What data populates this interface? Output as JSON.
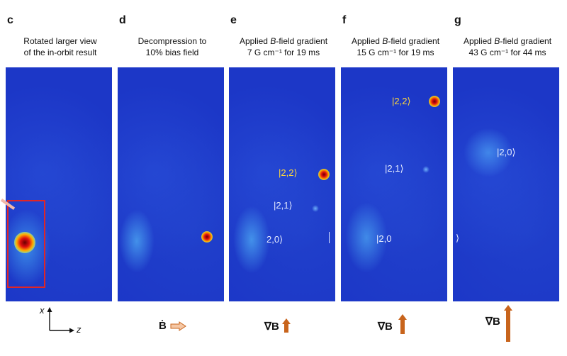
{
  "panels": [
    {
      "letter": "c",
      "caption_line1": "Rotated larger view",
      "caption_line2": "of the in-orbit result"
    },
    {
      "letter": "d",
      "caption_line1": "Decompression to",
      "caption_line2": "10% bias field",
      "bottom_symbol": "Ḃ"
    },
    {
      "letter": "e",
      "caption_pre": "Applied ",
      "caption_ital": "B",
      "caption_post": "-field gradient",
      "caption_line2": "7 G cm⁻¹ for 19 ms",
      "labels": [
        "|2,2⟩",
        "|2,1⟩",
        "2,0⟩"
      ],
      "bottom_symbol": "∇B"
    },
    {
      "letter": "f",
      "caption_pre": "Applied ",
      "caption_ital": "B",
      "caption_post": "-field gradient",
      "caption_line2": "15 G cm⁻¹ for 19 ms",
      "labels": [
        "|2,2⟩",
        "|2,1⟩",
        "|2,0"
      ],
      "bottom_symbol": "∇B"
    },
    {
      "letter": "g",
      "caption_pre": "Applied ",
      "caption_ital": "B",
      "caption_post": "-field gradient",
      "caption_line2": "43 G cm⁻¹ for 44 ms",
      "labels": [
        "|2,0⟩",
        "⟩"
      ],
      "bottom_symbol": "∇B"
    }
  ],
  "axes": {
    "x_label": "x",
    "z_label": "z"
  },
  "colors": {
    "background": "#1c37c7",
    "highlight_box": "#e02626",
    "label_yellow": "#ffd83a",
    "arrow": "#c8641c"
  }
}
